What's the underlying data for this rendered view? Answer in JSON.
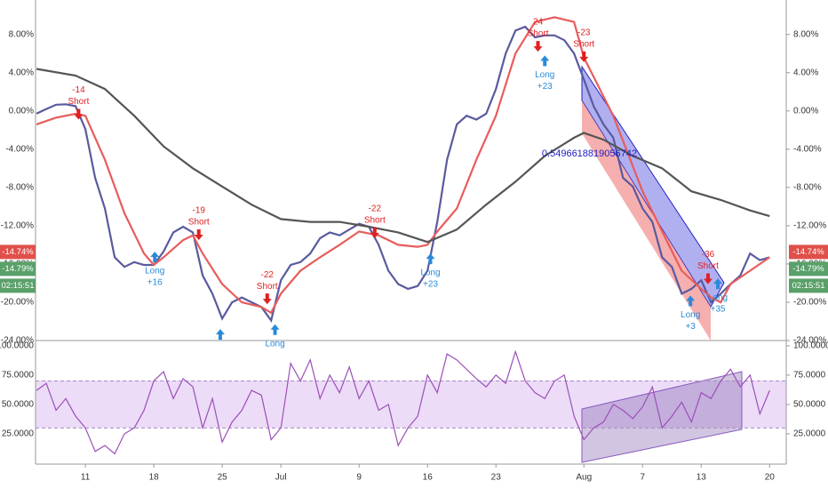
{
  "chart_data": [
    {
      "type": "line",
      "xlim": [
        5.9,
        82.7
      ],
      "ylim": [
        -24,
        11.6
      ],
      "yticks": [
        {
          "value": 8,
          "label": "8.00%"
        },
        {
          "value": 4,
          "label": "4.00%"
        },
        {
          "value": 0,
          "label": "0.00%"
        },
        {
          "value": -4,
          "label": "-4.00%"
        },
        {
          "value": -8,
          "label": "-8.00%"
        },
        {
          "value": -12,
          "label": "-12.00%"
        },
        {
          "value": -16,
          "label": "-16.00%"
        },
        {
          "value": -20,
          "label": "-20.00%"
        },
        {
          "value": -24,
          "label": "-24.00%"
        }
      ],
      "series": [
        {
          "color": "#5a5a9e",
          "x": [
            6,
            7,
            8,
            9,
            10,
            11,
            12,
            13,
            14,
            15,
            16,
            17,
            18,
            19,
            20,
            21,
            22,
            23,
            24,
            25,
            26,
            27,
            28,
            29,
            30,
            31,
            32,
            33,
            34,
            35,
            36,
            37,
            38,
            39,
            40,
            41,
            42,
            43,
            44,
            45,
            46,
            47,
            48,
            49,
            50,
            51,
            52,
            53,
            54,
            55,
            56,
            57,
            58,
            59,
            60,
            61,
            62,
            63,
            64,
            65,
            66,
            67,
            68,
            69,
            70,
            71,
            72,
            73,
            74,
            75,
            76,
            77,
            78,
            79,
            80,
            81
          ],
          "values": [
            -0.28,
            0.2,
            0.65,
            0.7,
            0.5,
            -1.9,
            -7,
            -10.2,
            -15.3,
            -16.3,
            -15.8,
            -16.1,
            -16.1,
            -14.7,
            -12.7,
            -12.1,
            -12.7,
            -17.2,
            -19.1,
            -21.7,
            -20,
            -19.5,
            -20,
            -20.5,
            -21.9,
            -17.7,
            -16.1,
            -15.8,
            -14.9,
            -13.3,
            -12.7,
            -13,
            -12.4,
            -11.8,
            -12.1,
            -14,
            -16.7,
            -18.1,
            -18.6,
            -18.3,
            -16.7,
            -11.6,
            -5.1,
            -1.4,
            -0.5,
            -0.9,
            -0.3,
            2.3,
            6,
            8.4,
            8.8,
            7.7,
            7.9,
            7.9,
            7.4,
            6,
            3.3,
            0.5,
            -1.4,
            -2.8,
            -7,
            -7.9,
            -10.2,
            -11.6,
            -15.3,
            -16.3,
            -19.1,
            -18.6,
            -17.7,
            -20,
            -19.1,
            -18.1,
            -17.2,
            -14.9,
            -15.6,
            -15.3
          ]
        },
        {
          "color": "#e85c5c",
          "x": [
            6,
            8,
            10,
            11,
            13,
            15,
            17,
            18,
            19,
            20,
            21,
            22,
            23,
            25,
            27,
            29,
            30,
            31,
            33,
            35,
            37,
            39,
            41,
            43,
            45,
            46,
            47,
            49,
            51,
            53,
            55,
            57,
            59,
            61,
            62,
            65,
            68,
            70,
            72,
            74,
            75,
            76,
            77,
            79,
            81
          ],
          "values": [
            -1.4,
            -0.7,
            -0.3,
            -0.5,
            -5.1,
            -10.7,
            -14.9,
            -16.1,
            -15.3,
            -14.4,
            -13.5,
            -13,
            -14.9,
            -18.1,
            -20,
            -20.5,
            -21.1,
            -19.1,
            -16.7,
            -15.3,
            -14,
            -12.6,
            -13,
            -14,
            -14.2,
            -14,
            -12.6,
            -10.2,
            -5.1,
            -0.5,
            6,
            9.3,
            9.8,
            9.3,
            5.6,
            -0.5,
            -8.4,
            -12.6,
            -16.7,
            -18.6,
            -19.5,
            -20,
            -18.1,
            -16.7,
            -15.3
          ]
        },
        {
          "color": "#555555",
          "x": [
            6,
            10,
            13,
            16,
            19,
            22,
            25,
            28,
            31,
            34,
            37,
            40,
            43,
            46,
            49,
            52,
            55,
            58,
            61,
            62,
            64,
            67,
            70,
            73,
            76,
            79,
            81
          ],
          "values": [
            4.4,
            3.7,
            2.3,
            -0.5,
            -3.7,
            -6,
            -7.9,
            -9.8,
            -11.3,
            -11.6,
            -11.6,
            -12.1,
            -12.7,
            -13.7,
            -12.4,
            -9.8,
            -7.4,
            -4.7,
            -2.8,
            -2.3,
            -3,
            -4.7,
            -6,
            -8.4,
            -9.3,
            -10.4,
            -11
          ]
        }
      ],
      "annotations": [
        {
          "x": 10.3,
          "y": -0.9,
          "dir": "down",
          "color": "#e02020",
          "lines": [
            "-14",
            "Short"
          ]
        },
        {
          "x": 18.1,
          "y": -14.7,
          "dir": "up",
          "color": "#2a8ad8",
          "lines": [
            "Long",
            "+16"
          ]
        },
        {
          "x": 22.6,
          "y": -13.5,
          "dir": "down",
          "color": "#e02020",
          "lines": [
            "-19",
            "Short"
          ]
        },
        {
          "x": 24.8,
          "y": -22.8,
          "dir": "up",
          "color": "#2a8ad8"
        },
        {
          "x": 29.6,
          "y": -20.2,
          "dir": "down",
          "color": "#e02020",
          "lines": [
            "-22",
            "Short"
          ]
        },
        {
          "x": 30.4,
          "y": -22.3,
          "dir": "up",
          "color": "#2a8ad8",
          "lines": [
            "Long"
          ]
        },
        {
          "x": 40.6,
          "y": -13.3,
          "dir": "down",
          "color": "#e02020",
          "lines": [
            "-22",
            "Short"
          ]
        },
        {
          "x": 46.3,
          "y": -14.9,
          "dir": "up",
          "color": "#2a8ad8",
          "lines": [
            "Long",
            "+23"
          ]
        },
        {
          "x": 57.3,
          "y": 6.2,
          "dir": "down",
          "color": "#e02020",
          "lines": [
            "24",
            "Short"
          ]
        },
        {
          "x": 58,
          "y": 5.8,
          "dir": "up",
          "color": "#2a8ad8",
          "lines": [
            "Long",
            "+23"
          ]
        },
        {
          "x": 62,
          "y": 5.1,
          "dir": "down",
          "color": "#e02020",
          "lines": [
            "-23",
            "Short"
          ]
        },
        {
          "x": 72.9,
          "y": -19.3,
          "dir": "up",
          "color": "#2a8ad8",
          "lines": [
            "Long",
            "+3"
          ]
        },
        {
          "x": 74.7,
          "y": -18.1,
          "dir": "down",
          "color": "#e02020",
          "lines": [
            "-36",
            "Short"
          ]
        },
        {
          "x": 75.7,
          "y": -17.5,
          "dir": "up",
          "color": "#2a8ad8",
          "lines": [
            "Long",
            "+35"
          ]
        }
      ],
      "channel_label": {
        "text": "0.5496618819056742",
        "x": 57.7,
        "y": -4.5,
        "color": "#2020c0"
      },
      "badges": [
        {
          "value": -14.74,
          "label": "-14.74%",
          "color": "#e0504a"
        },
        {
          "value": -14.79,
          "label": "-14.79%",
          "color": "#5aa06a"
        },
        {
          "label": "02:15:51",
          "color": "#5aa06a"
        }
      ]
    },
    {
      "type": "line",
      "xlim": [
        5.9,
        82.7
      ],
      "ylim": [
        -0.8,
        104.5
      ],
      "yticks": [
        {
          "value": 100,
          "label": "100.0000"
        },
        {
          "value": 75,
          "label": "75.0000"
        },
        {
          "value": 50,
          "label": "50.0000"
        },
        {
          "value": 25,
          "label": "25.0000"
        }
      ],
      "xticks": [
        11,
        18,
        25,
        {
          "value": 31,
          "label": "Jul"
        },
        {
          "value": 39,
          "label": "9"
        },
        {
          "value": 46,
          "label": "16"
        },
        {
          "value": 53,
          "label": "23"
        },
        {
          "value": 62,
          "label": "Aug"
        },
        {
          "value": 68,
          "label": "7"
        },
        {
          "value": 74,
          "label": "13"
        },
        {
          "value": 81,
          "label": "20"
        }
      ],
      "band": [
        30,
        70
      ],
      "series": [
        {
          "color": "#9b4fb8",
          "x": [
            6,
            7,
            8,
            9,
            10,
            11,
            12,
            13,
            14,
            15,
            16,
            17,
            18,
            19,
            20,
            21,
            22,
            23,
            24,
            25,
            26,
            27,
            28,
            29,
            30,
            31,
            32,
            33,
            34,
            35,
            36,
            37,
            38,
            39,
            40,
            41,
            42,
            43,
            44,
            45,
            46,
            47,
            48,
            49,
            50,
            51,
            52,
            53,
            54,
            55,
            56,
            57,
            58,
            59,
            60,
            61,
            62,
            63,
            64,
            65,
            66,
            67,
            68,
            69,
            70,
            71,
            72,
            73,
            74,
            75,
            76,
            77,
            78,
            79,
            80,
            81
          ],
          "values": [
            62,
            68,
            45,
            55,
            40,
            30,
            10,
            15,
            8,
            25,
            30,
            45,
            70,
            78,
            55,
            72,
            65,
            30,
            55,
            18,
            35,
            45,
            62,
            58,
            20,
            30,
            85,
            70,
            88,
            55,
            75,
            60,
            82,
            55,
            70,
            45,
            50,
            15,
            30,
            40,
            75,
            60,
            93,
            88,
            80,
            72,
            65,
            75,
            68,
            95,
            70,
            60,
            55,
            70,
            75,
            40,
            20,
            30,
            35,
            50,
            45,
            38,
            48,
            65,
            30,
            40,
            52,
            35,
            60,
            55,
            70,
            80,
            65,
            75,
            42,
            62
          ]
        }
      ]
    }
  ]
}
